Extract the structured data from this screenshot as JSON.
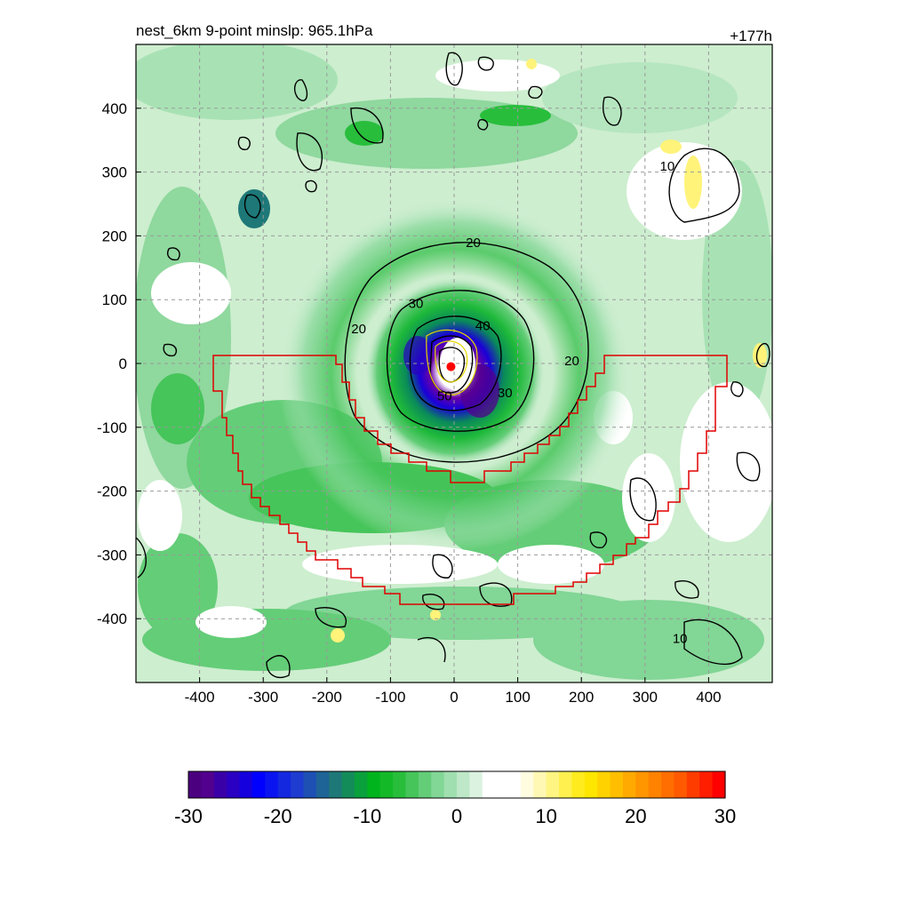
{
  "header": {
    "left_title": "nest_6km  9-point minslp: 965.1hPa",
    "right_title": "+177h"
  },
  "chart_data": {
    "type": "heatmap",
    "xlim": [
      -500,
      500
    ],
    "ylim": [
      -500,
      500
    ],
    "x_ticks": [
      -400,
      -300,
      -200,
      -100,
      0,
      100,
      200,
      300,
      400
    ],
    "y_ticks": [
      -400,
      -300,
      -200,
      -100,
      0,
      100,
      200,
      300,
      400
    ],
    "x_tick_labels": [
      "-400",
      "-300",
      "-200",
      "-100",
      "0",
      "100",
      "200",
      "300",
      "400"
    ],
    "y_tick_labels": [
      "-400",
      "-300",
      "-200",
      "-100",
      "0",
      "100",
      "200",
      "300",
      "400"
    ],
    "grid": true,
    "contour_labels": [
      {
        "text": "20",
        "x": 30,
        "y": 185
      },
      {
        "text": "30",
        "x": -60,
        "y": 90
      },
      {
        "text": "40",
        "x": 45,
        "y": 55
      },
      {
        "text": "20",
        "x": -150,
        "y": 50
      },
      {
        "text": "20",
        "x": 185,
        "y": 0
      },
      {
        "text": "30",
        "x": 80,
        "y": -50
      },
      {
        "text": "50",
        "x": -15,
        "y": -55
      },
      {
        "text": "10",
        "x": 335,
        "y": 305
      },
      {
        "text": "10",
        "x": 355,
        "y": -435
      }
    ],
    "center_marker": {
      "x": -5,
      "y": -5,
      "color": "#ff0000"
    },
    "colorbar": {
      "min": -30,
      "max": 30,
      "ticks": [
        -30,
        -20,
        -10,
        0,
        10,
        20,
        30
      ],
      "tick_labels": [
        "-30",
        "-20",
        "-10",
        "0",
        "10",
        "20",
        "30"
      ],
      "colors": [
        "#4b0080",
        "#52008e",
        "#3a00a8",
        "#2a00c2",
        "#1500dd",
        "#0000ff",
        "#0a14f0",
        "#1428e0",
        "#1e3cd0",
        "#1e50b4",
        "#1e6496",
        "#1e7878",
        "#148c5a",
        "#0aa03c",
        "#00b41e",
        "#14b928",
        "#28be3c",
        "#46c55a",
        "#64cd78",
        "#82d696",
        "#a0dfb0",
        "#bee8c8",
        "#dcf2e0",
        "#ffffff",
        "#ffffff",
        "#ffffff",
        "#fffce0",
        "#fff8b4",
        "#fff582",
        "#fff050",
        "#ffeb1e",
        "#ffe600",
        "#ffd200",
        "#ffbe00",
        "#ffaa00",
        "#ff9600",
        "#ff8200",
        "#ff6e00",
        "#ff5a00",
        "#ff3c00",
        "#ff1e00",
        "#ff0000"
      ]
    }
  }
}
